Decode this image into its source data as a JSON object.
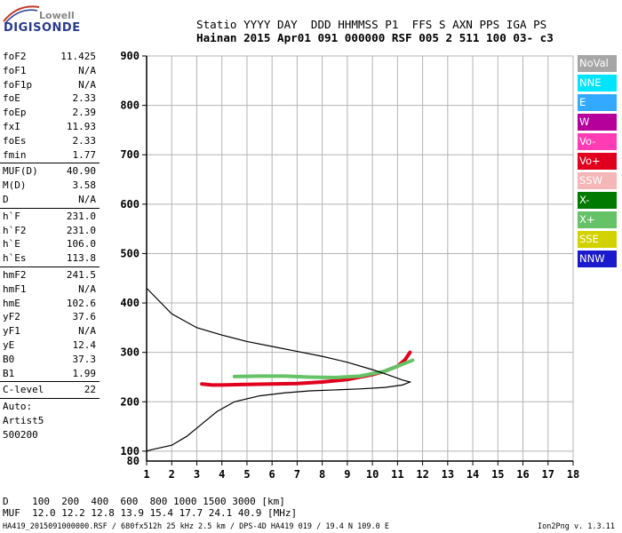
{
  "logo": {
    "brand_top": "Lowell",
    "brand_main": "DIGISONDE"
  },
  "header": {
    "line1": "Statio YYYY DAY  DDD HHMMSS P1  FFS S AXN PPS IGA PS",
    "line2": "Hainan 2015 Apr01 091 000000 RSF 005 2 511 100 03- c3"
  },
  "params": {
    "group1": [
      {
        "label": "foF2",
        "value": "11.425"
      },
      {
        "label": "foF1",
        "value": "N/A"
      },
      {
        "label": "foF1p",
        "value": "N/A"
      },
      {
        "label": "foE",
        "value": "2.33"
      },
      {
        "label": "foEp",
        "value": "2.39"
      },
      {
        "label": "fxI",
        "value": "11.93"
      },
      {
        "label": "foEs",
        "value": "2.33"
      },
      {
        "label": "fmin",
        "value": "1.77"
      }
    ],
    "group2": [
      {
        "label": "MUF(D)",
        "value": "40.90"
      },
      {
        "label": "M(D)",
        "value": "3.58"
      },
      {
        "label": "D",
        "value": "N/A"
      }
    ],
    "group3": [
      {
        "label": "h`F",
        "value": "231.0"
      },
      {
        "label": "h`F2",
        "value": "231.0"
      },
      {
        "label": "h`E",
        "value": "106.0"
      },
      {
        "label": "h`Es",
        "value": "113.8"
      }
    ],
    "group4": [
      {
        "label": "hmF2",
        "value": "241.5"
      },
      {
        "label": "hmF1",
        "value": "N/A"
      },
      {
        "label": "hmE",
        "value": "102.6"
      },
      {
        "label": "yF2",
        "value": "37.6"
      },
      {
        "label": "yF1",
        "value": "N/A"
      },
      {
        "label": "yE",
        "value": "12.4"
      },
      {
        "label": "B0",
        "value": "37.3"
      },
      {
        "label": "B1",
        "value": "1.99"
      }
    ],
    "group5": [
      {
        "label": "C-level",
        "value": "22"
      }
    ],
    "auto_label": "Auto:",
    "artist": "Artist5",
    "artist_version": "500200"
  },
  "legend": [
    {
      "label": "NoVal",
      "color": "#a6a6a6"
    },
    {
      "label": "NNE",
      "color": "#00e5ff"
    },
    {
      "label": "E",
      "color": "#33aaff"
    },
    {
      "label": "W",
      "color": "#b5009c"
    },
    {
      "label": "Vo-",
      "color": "#ff3cb4"
    },
    {
      "label": "Vo+",
      "color": "#e0001e"
    },
    {
      "label": "SSW",
      "color": "#f4b6b6"
    },
    {
      "label": "X-",
      "color": "#007a00"
    },
    {
      "label": "X+",
      "color": "#66c266"
    },
    {
      "label": "SSE",
      "color": "#d2d200"
    },
    {
      "label": "NNW",
      "color": "#1a1acc"
    }
  ],
  "distance_table": {
    "line1": "D    100  200  400  600  800 1000 1500 3000 [km]",
    "line2": "MUF  12.0 12.2 12.8 13.9 15.4 17.7 24.1 40.9 [MHz]"
  },
  "footer": {
    "left": "HA419_2015091000000.RSF / 680fx512h 25 kHz 2.5 km / DPS-4D HA419 019 / 19.4 N 109.0 E",
    "right": "Ion2Png v. 1.3.11"
  },
  "chart_data": {
    "type": "scatter",
    "xlim": [
      1,
      18
    ],
    "ylim": [
      80,
      900
    ],
    "xticks": [
      1,
      2,
      3,
      4,
      5,
      6,
      7,
      8,
      9,
      10,
      11,
      12,
      13,
      14,
      15,
      16,
      17,
      18
    ],
    "yticks": [
      100,
      200,
      300,
      400,
      500,
      600,
      700,
      800,
      900
    ],
    "grid": true,
    "profile_curve": {
      "x": [
        1.0,
        2.0,
        3.0,
        4.0,
        5.0,
        6.0,
        7.0,
        8.0,
        9.0,
        10.0,
        10.6,
        11.2,
        11.5,
        11.2,
        10.5,
        9.5,
        8.5,
        7.5,
        6.5,
        5.5,
        4.5,
        3.8,
        3.2,
        2.6,
        2.0,
        1.2,
        1.0
      ],
      "y": [
        430,
        378,
        350,
        335,
        322,
        312,
        302,
        292,
        280,
        265,
        255,
        244,
        240,
        234,
        229,
        226,
        224,
        222,
        218,
        212,
        200,
        180,
        155,
        130,
        112,
        103,
        100
      ]
    },
    "traces": [
      {
        "name": "Vo+",
        "color": "#e0001e",
        "x": [
          3.2,
          3.6,
          4.0,
          5.0,
          6.0,
          7.0,
          8.0,
          9.0,
          10.0,
          10.5,
          11.0,
          11.3,
          11.5
        ],
        "y": [
          236,
          234,
          234,
          235,
          236,
          237,
          240,
          245,
          255,
          262,
          272,
          285,
          300
        ]
      },
      {
        "name": "X+",
        "color": "#66c266",
        "x": [
          4.5,
          5.5,
          6.5,
          7.5,
          8.5,
          9.5,
          10.5,
          11.0,
          11.6
        ],
        "y": [
          251,
          252,
          252,
          250,
          249,
          252,
          262,
          272,
          284
        ]
      }
    ]
  }
}
